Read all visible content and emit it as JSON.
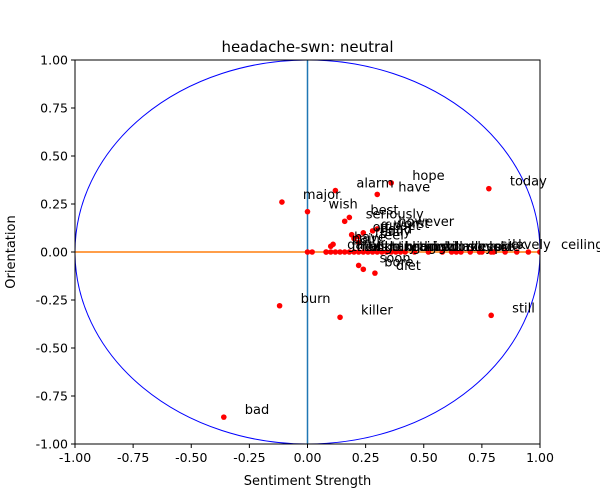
{
  "chart_data": {
    "type": "scatter",
    "title": "headache-swn: neutral",
    "xlabel": "Sentiment Strength",
    "ylabel": "Orientation",
    "xlim": [
      -1.0,
      1.0
    ],
    "ylim": [
      -1.0,
      1.0
    ],
    "xticks": [
      "-1.00",
      "-0.75",
      "-0.50",
      "-0.25",
      "0.00",
      "0.25",
      "0.50",
      "0.75",
      "1.00"
    ],
    "yticks": [
      "-1.00",
      "-0.75",
      "-0.50",
      "-0.25",
      "0.00",
      "0.25",
      "0.50",
      "0.75",
      "1.00"
    ],
    "xtick_values": [
      -1.0,
      -0.75,
      -0.5,
      -0.25,
      0.0,
      0.25,
      0.5,
      0.75,
      1.0
    ],
    "ytick_values": [
      -1.0,
      -0.75,
      -0.5,
      -0.25,
      0.0,
      0.25,
      0.5,
      0.75,
      1.0
    ],
    "grid": false,
    "reference_circle": {
      "radius": 1.0,
      "color": "#0000ff"
    },
    "vertical_line": {
      "x": 0.0,
      "color": "#1f77b4"
    },
    "horizontal_line": {
      "y": 0.0,
      "color": "#ff7f0e"
    },
    "point_color": "#ff0000",
    "points": [
      {
        "word": "hope",
        "x": 0.36,
        "y": 0.36
      },
      {
        "word": "today",
        "x": 0.78,
        "y": 0.33
      },
      {
        "word": "alarm",
        "x": 0.12,
        "y": 0.32
      },
      {
        "word": "have",
        "x": 0.3,
        "y": 0.3
      },
      {
        "word": "major",
        "x": -0.11,
        "y": 0.26
      },
      {
        "word": "wish",
        "x": 0.0,
        "y": 0.21
      },
      {
        "word": "best",
        "x": 0.18,
        "y": 0.18
      },
      {
        "word": "seriously",
        "x": 0.16,
        "y": 0.16
      },
      {
        "word": "however",
        "x": 0.3,
        "y": 0.12
      },
      {
        "word": "worst",
        "x": 0.28,
        "y": 0.11
      },
      {
        "word": "upset",
        "x": 0.24,
        "y": 0.1
      },
      {
        "word": "off",
        "x": 0.19,
        "y": 0.09
      },
      {
        "word": "head",
        "x": 0.22,
        "y": 0.08
      },
      {
        "word": "really",
        "x": 0.2,
        "y": 0.07
      },
      {
        "word": "feel",
        "x": 0.22,
        "y": 0.05
      },
      {
        "word": "have",
        "x": 0.11,
        "y": 0.04
      },
      {
        "word": "pain",
        "x": 0.1,
        "y": 0.03
      },
      {
        "word": "game",
        "x": 0.08,
        "y": 0.0
      },
      {
        "word": "sick",
        "x": 0.74,
        "y": 0.0
      },
      {
        "word": "lovely",
        "x": 0.79,
        "y": 0.0
      },
      {
        "word": "ceiling",
        "x": 1.0,
        "y": 0.0
      },
      {
        "word": "soon",
        "x": 0.22,
        "y": -0.07
      },
      {
        "word": "bore",
        "x": 0.24,
        "y": -0.09
      },
      {
        "word": "diet",
        "x": 0.29,
        "y": -0.11
      },
      {
        "word": "burn",
        "x": -0.12,
        "y": -0.28
      },
      {
        "word": "killer",
        "x": 0.14,
        "y": -0.34
      },
      {
        "word": "still",
        "x": 0.79,
        "y": -0.33
      },
      {
        "word": "bad",
        "x": -0.36,
        "y": -0.86
      }
    ],
    "x_axis_points": [
      0.0,
      0.02,
      0.08,
      0.1,
      0.12,
      0.14,
      0.16,
      0.18,
      0.2,
      0.22,
      0.24,
      0.26,
      0.28,
      0.3,
      0.32,
      0.34,
      0.36,
      0.38,
      0.4,
      0.42,
      0.46,
      0.52,
      0.58,
      0.62,
      0.64,
      0.66,
      0.7,
      0.75,
      0.8,
      0.85,
      0.9,
      0.95,
      1.0
    ],
    "x_axis_labels": [
      {
        "word": "the",
        "x": 0.1
      },
      {
        "word": "that",
        "x": 0.12
      },
      {
        "word": "this",
        "x": 0.15
      },
      {
        "word": "with",
        "x": 0.18
      },
      {
        "word": "like",
        "x": 0.21
      },
      {
        "word": "going",
        "x": 0.24
      },
      {
        "word": "taken",
        "x": 0.27
      },
      {
        "word": "trying",
        "x": 0.3
      },
      {
        "word": "brain",
        "x": 0.33
      },
      {
        "word": "home",
        "x": 0.36
      },
      {
        "word": "think",
        "x": 0.39
      },
      {
        "word": "night",
        "x": 0.42
      },
      {
        "word": "bed",
        "x": 0.45
      },
      {
        "word": "still",
        "x": 0.48
      },
      {
        "word": "work",
        "x": 0.51
      },
      {
        "word": "back",
        "x": 0.54
      },
      {
        "word": "much",
        "x": 0.57
      },
      {
        "word": "sleep",
        "x": 0.6
      },
      {
        "word": "eyes",
        "x": 0.64
      },
      {
        "word": "sore",
        "x": 0.68
      },
      {
        "word": "side",
        "x": 0.71
      }
    ]
  }
}
